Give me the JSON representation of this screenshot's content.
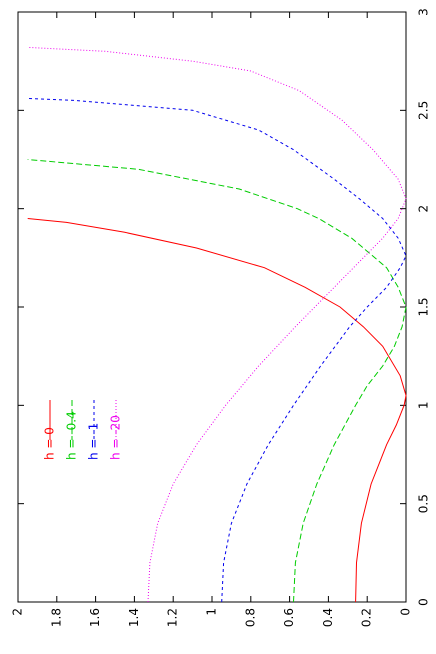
{
  "chart_data": {
    "type": "line",
    "orientation": "rotated-90-ccw",
    "xlim": [
      0,
      3
    ],
    "ylim": [
      0,
      2
    ],
    "x_ticks": [
      "0",
      "0.5",
      "1",
      "1.5",
      "2",
      "2.5",
      "3"
    ],
    "y_ticks": [
      "0",
      "0.2",
      "0.4",
      "0.6",
      "0.8",
      "1",
      "1.2",
      "1.4",
      "1.6",
      "1.8",
      "2"
    ],
    "grid": false,
    "legend_position": "top-left (rotated)",
    "series": [
      {
        "name": "h = 0",
        "color": "#ff0000",
        "dash": "solid",
        "points": [
          [
            0,
            0.26
          ],
          [
            0.2,
            0.255
          ],
          [
            0.4,
            0.23
          ],
          [
            0.6,
            0.18
          ],
          [
            0.8,
            0.1
          ],
          [
            0.9,
            0.05
          ],
          [
            1.0,
            0.01
          ],
          [
            1.05,
            0.0
          ],
          [
            1.15,
            0.03
          ],
          [
            1.3,
            0.12
          ],
          [
            1.4,
            0.22
          ],
          [
            1.5,
            0.34
          ],
          [
            1.6,
            0.52
          ],
          [
            1.7,
            0.73
          ],
          [
            1.8,
            1.08
          ],
          [
            1.88,
            1.45
          ],
          [
            1.93,
            1.75
          ],
          [
            1.95,
            1.95
          ]
        ]
      },
      {
        "name": "h = -0.4",
        "color": "#00cc00",
        "dash": "6,3",
        "points": [
          [
            0,
            0.58
          ],
          [
            0.2,
            0.57
          ],
          [
            0.4,
            0.53
          ],
          [
            0.6,
            0.46
          ],
          [
            0.8,
            0.37
          ],
          [
            1.0,
            0.26
          ],
          [
            1.1,
            0.2
          ],
          [
            1.2,
            0.12
          ],
          [
            1.3,
            0.06
          ],
          [
            1.4,
            0.02
          ],
          [
            1.5,
            0.0
          ],
          [
            1.6,
            0.04
          ],
          [
            1.7,
            0.1
          ],
          [
            1.85,
            0.28
          ],
          [
            1.95,
            0.45
          ],
          [
            2.0,
            0.56
          ],
          [
            2.1,
            0.86
          ],
          [
            2.2,
            1.38
          ],
          [
            2.25,
            1.95
          ]
        ]
      },
      {
        "name": "h = -1",
        "color": "#0000ee",
        "dash": "3,3",
        "points": [
          [
            0,
            0.95
          ],
          [
            0.2,
            0.94
          ],
          [
            0.4,
            0.9
          ],
          [
            0.6,
            0.82
          ],
          [
            0.8,
            0.71
          ],
          [
            1.0,
            0.58
          ],
          [
            1.2,
            0.44
          ],
          [
            1.4,
            0.29
          ],
          [
            1.5,
            0.2
          ],
          [
            1.6,
            0.1
          ],
          [
            1.7,
            0.03
          ],
          [
            1.76,
            0.0
          ],
          [
            1.85,
            0.04
          ],
          [
            1.95,
            0.12
          ],
          [
            2.05,
            0.24
          ],
          [
            2.15,
            0.37
          ],
          [
            2.3,
            0.58
          ],
          [
            2.4,
            0.76
          ],
          [
            2.5,
            1.1
          ],
          [
            2.55,
            1.7
          ],
          [
            2.56,
            1.95
          ]
        ]
      },
      {
        "name": "h = -20",
        "color": "#ee00ee",
        "dash": "1,2",
        "points": [
          [
            0,
            1.33
          ],
          [
            0.2,
            1.32
          ],
          [
            0.4,
            1.28
          ],
          [
            0.6,
            1.2
          ],
          [
            0.8,
            1.08
          ],
          [
            1.0,
            0.93
          ],
          [
            1.2,
            0.76
          ],
          [
            1.4,
            0.57
          ],
          [
            1.6,
            0.37
          ],
          [
            1.75,
            0.22
          ],
          [
            1.85,
            0.12
          ],
          [
            1.95,
            0.04
          ],
          [
            2.05,
            0.0
          ],
          [
            2.15,
            0.04
          ],
          [
            2.3,
            0.17
          ],
          [
            2.45,
            0.33
          ],
          [
            2.6,
            0.55
          ],
          [
            2.7,
            0.8
          ],
          [
            2.75,
            1.1
          ],
          [
            2.8,
            1.55
          ],
          [
            2.82,
            1.95
          ]
        ]
      }
    ]
  }
}
